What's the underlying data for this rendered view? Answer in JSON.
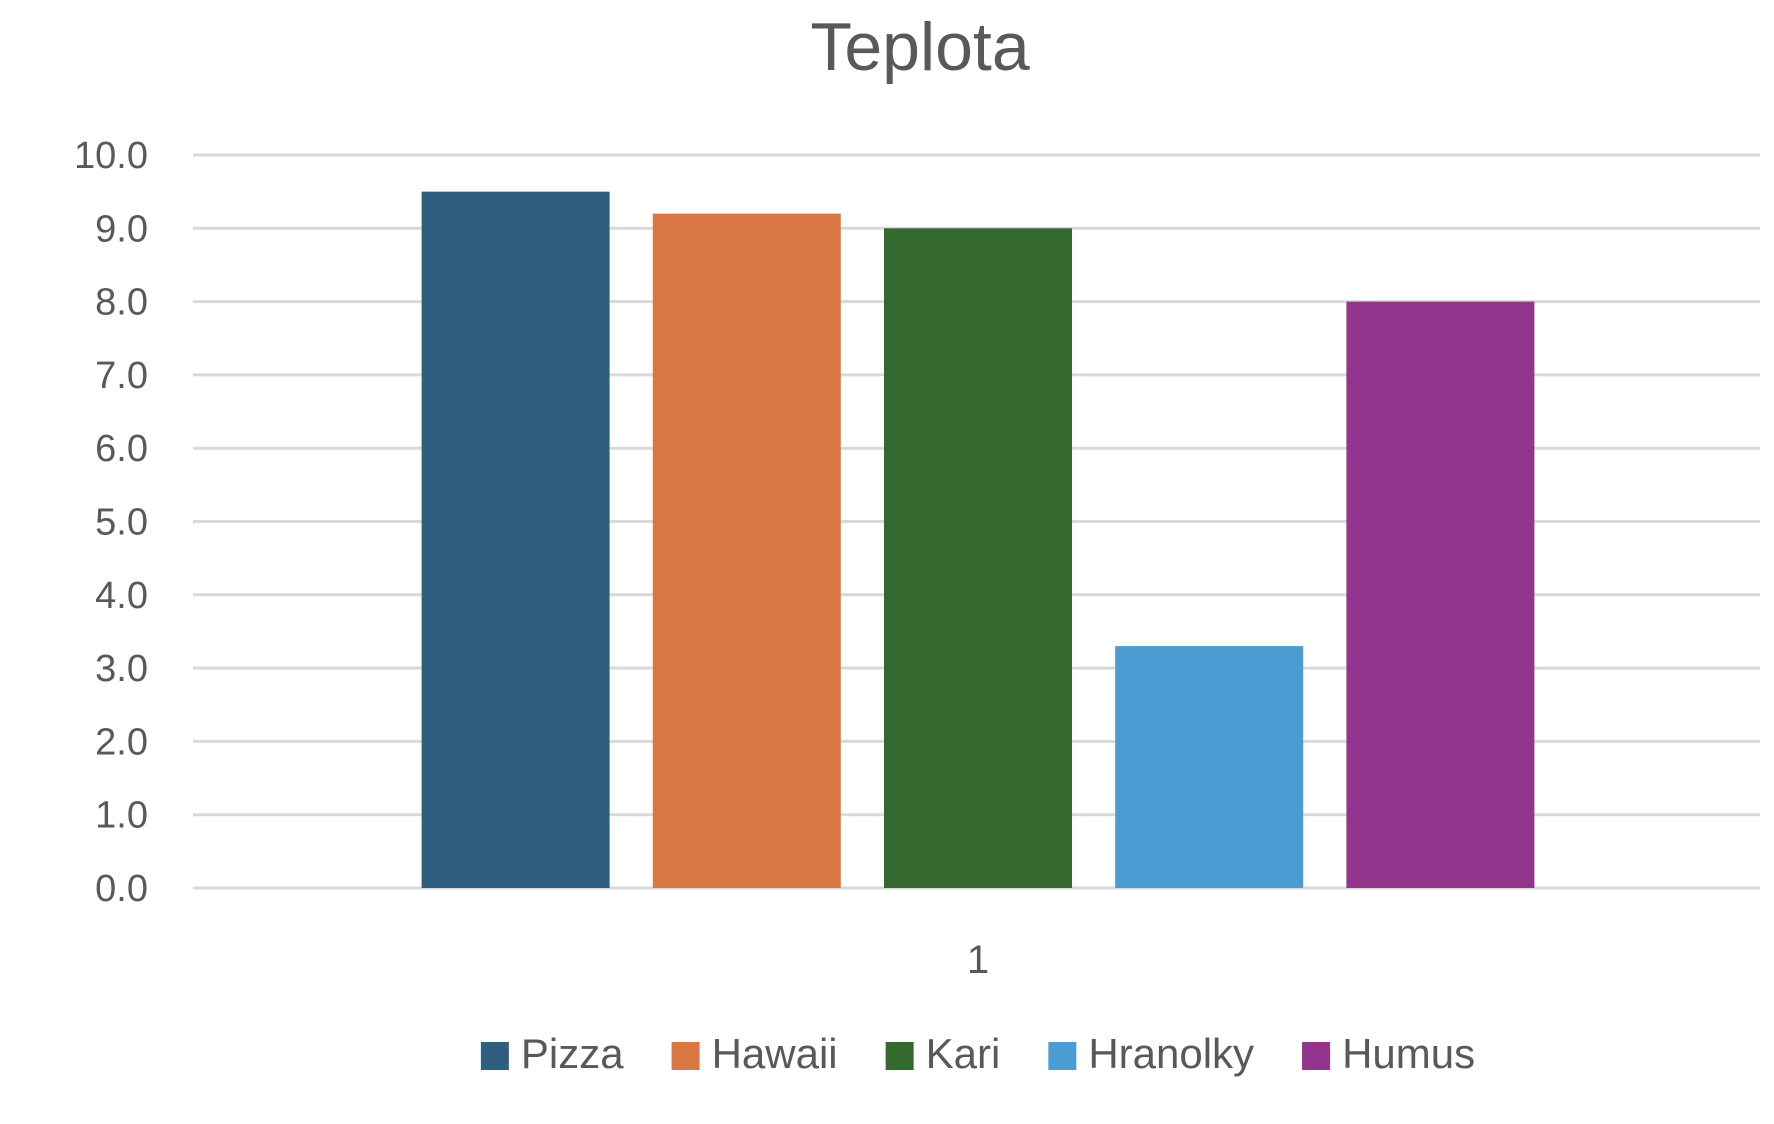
{
  "chart_data": {
    "type": "bar",
    "title": "Teplota",
    "categories": [
      "1"
    ],
    "series": [
      {
        "name": "Pizza",
        "values": [
          9.5
        ],
        "color": "#2e5f7f"
      },
      {
        "name": "Hawaii",
        "values": [
          9.2
        ],
        "color": "#d97843"
      },
      {
        "name": "Kari",
        "values": [
          9.0
        ],
        "color": "#346a2f"
      },
      {
        "name": "Hranolky",
        "values": [
          3.3
        ],
        "color": "#4a9cd3"
      },
      {
        "name": "Humus",
        "values": [
          8.0
        ],
        "color": "#93358d"
      }
    ],
    "y_ticks": [
      "0.0",
      "1.0",
      "2.0",
      "3.0",
      "4.0",
      "5.0",
      "6.0",
      "7.0",
      "8.0",
      "9.0",
      "10.0"
    ],
    "ylim": [
      0,
      10
    ],
    "grid": true,
    "legend_position": "bottom",
    "xlabel": "",
    "ylabel": ""
  }
}
